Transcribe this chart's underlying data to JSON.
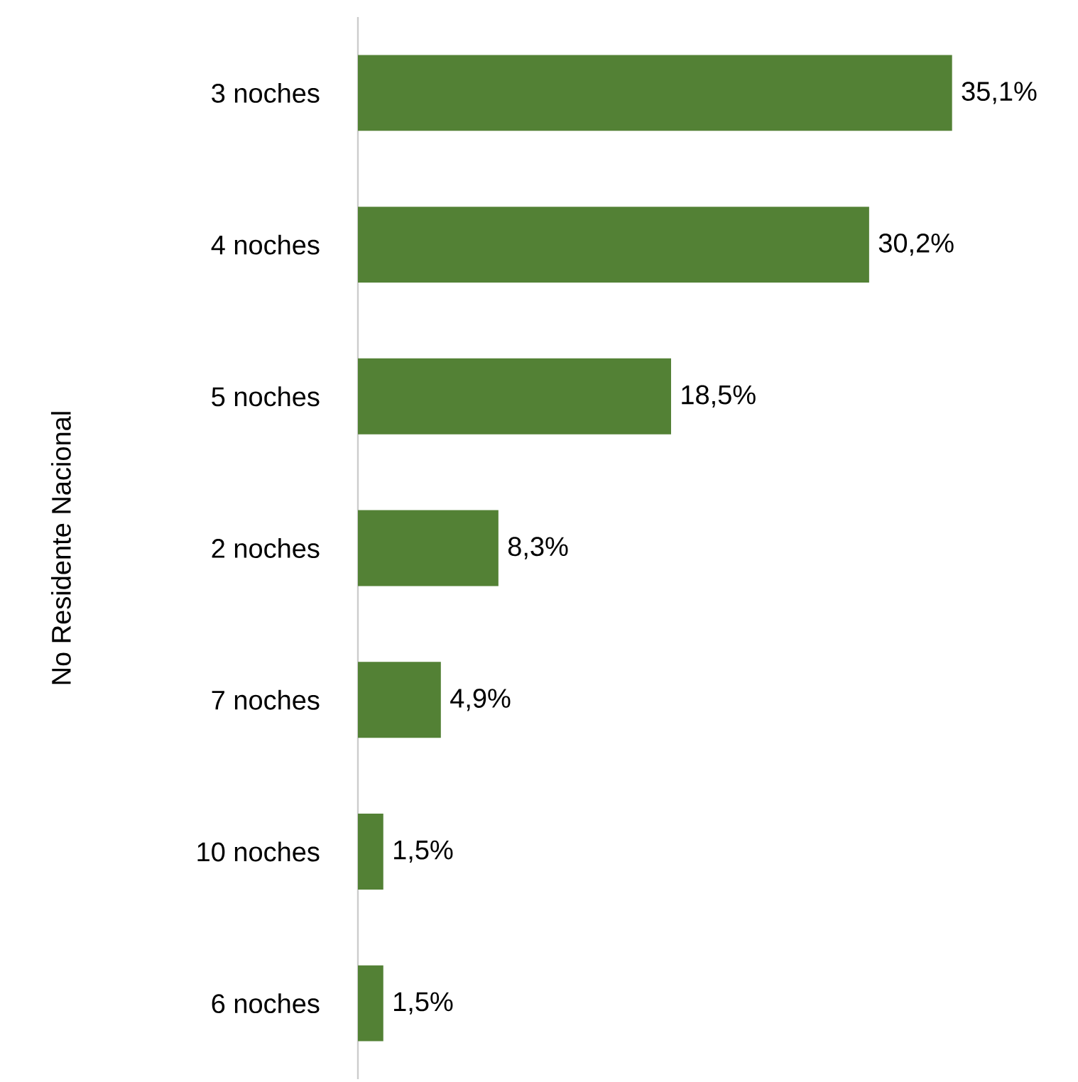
{
  "chart_data": {
    "type": "bar",
    "orientation": "horizontal",
    "ylabel": "No Residente Nacional",
    "categories": [
      "3 noches",
      "4 noches",
      "5 noches",
      "2 noches",
      "7 noches",
      "10 noches",
      "6 noches"
    ],
    "values": [
      35.1,
      30.2,
      18.5,
      8.3,
      4.9,
      1.5,
      1.5
    ],
    "value_labels": [
      "35,1%",
      "30,2%",
      "18,5%",
      "8,3%",
      "4,9%",
      "1,5%",
      "1,5%"
    ],
    "color": "#538135"
  }
}
